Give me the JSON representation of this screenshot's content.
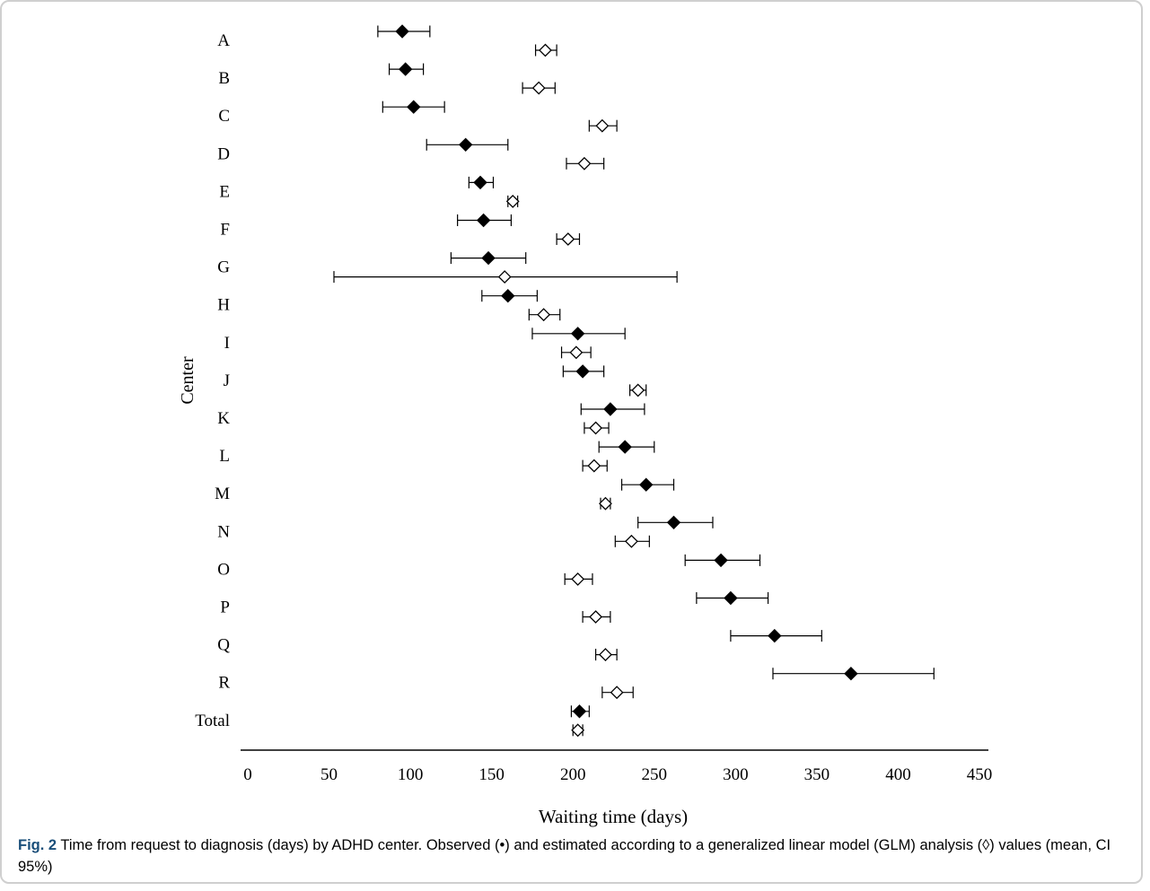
{
  "chart_data": {
    "type": "scatter",
    "subtype": "forest-plot-with-error-bars",
    "xlabel": "Waiting time (days)",
    "ylabel": "Center",
    "xlim": [
      0,
      450
    ],
    "xticks": [
      "0",
      "50",
      "100",
      "150",
      "200",
      "250",
      "300",
      "350",
      "400",
      "450"
    ],
    "grid": false,
    "categories": [
      "A",
      "B",
      "C",
      "D",
      "E",
      "F",
      "G",
      "H",
      "I",
      "J",
      "K",
      "L",
      "M",
      "N",
      "O",
      "P",
      "Q",
      "R",
      "Total"
    ],
    "series": [
      {
        "marker": "filled-diamond",
        "color": "#000000",
        "points": [
          {
            "center": "A",
            "mean": 95,
            "lo": 80,
            "hi": 112
          },
          {
            "center": "B",
            "mean": 97,
            "lo": 87,
            "hi": 108
          },
          {
            "center": "C",
            "mean": 102,
            "lo": 83,
            "hi": 121
          },
          {
            "center": "D",
            "mean": 134,
            "lo": 110,
            "hi": 160
          },
          {
            "center": "E",
            "mean": 143,
            "lo": 136,
            "hi": 151
          },
          {
            "center": "F",
            "mean": 145,
            "lo": 129,
            "hi": 162
          },
          {
            "center": "G",
            "mean": 148,
            "lo": 125,
            "hi": 171
          },
          {
            "center": "H",
            "mean": 160,
            "lo": 144,
            "hi": 178
          },
          {
            "center": "I",
            "mean": 203,
            "lo": 175,
            "hi": 232
          },
          {
            "center": "J",
            "mean": 206,
            "lo": 194,
            "hi": 219
          },
          {
            "center": "K",
            "mean": 223,
            "lo": 205,
            "hi": 244
          },
          {
            "center": "L",
            "mean": 232,
            "lo": 216,
            "hi": 250
          },
          {
            "center": "M",
            "mean": 245,
            "lo": 230,
            "hi": 262
          },
          {
            "center": "N",
            "mean": 262,
            "lo": 240,
            "hi": 286
          },
          {
            "center": "O",
            "mean": 291,
            "lo": 269,
            "hi": 315
          },
          {
            "center": "P",
            "mean": 297,
            "lo": 276,
            "hi": 320
          },
          {
            "center": "Q",
            "mean": 324,
            "lo": 297,
            "hi": 353
          },
          {
            "center": "R",
            "mean": 371,
            "lo": 323,
            "hi": 422
          },
          {
            "center": "Total",
            "mean": 204,
            "lo": 199,
            "hi": 210
          }
        ]
      },
      {
        "marker": "open-diamond",
        "color": "#000000",
        "points": [
          {
            "center": "A",
            "mean": 183,
            "lo": 177,
            "hi": 190
          },
          {
            "center": "B",
            "mean": 179,
            "lo": 169,
            "hi": 189
          },
          {
            "center": "C",
            "mean": 218,
            "lo": 210,
            "hi": 227
          },
          {
            "center": "D",
            "mean": 207,
            "lo": 196,
            "hi": 219
          },
          {
            "center": "E",
            "mean": 163,
            "lo": 160,
            "hi": 166
          },
          {
            "center": "F",
            "mean": 197,
            "lo": 190,
            "hi": 204
          },
          {
            "center": "G",
            "mean": 158,
            "lo": 53,
            "hi": 264
          },
          {
            "center": "H",
            "mean": 182,
            "lo": 173,
            "hi": 192
          },
          {
            "center": "I",
            "mean": 202,
            "lo": 193,
            "hi": 211
          },
          {
            "center": "J",
            "mean": 240,
            "lo": 235,
            "hi": 245
          },
          {
            "center": "K",
            "mean": 214,
            "lo": 207,
            "hi": 222
          },
          {
            "center": "L",
            "mean": 213,
            "lo": 206,
            "hi": 221
          },
          {
            "center": "M",
            "mean": 220,
            "lo": 217,
            "hi": 223
          },
          {
            "center": "N",
            "mean": 236,
            "lo": 226,
            "hi": 247
          },
          {
            "center": "O",
            "mean": 203,
            "lo": 195,
            "hi": 212
          },
          {
            "center": "P",
            "mean": 214,
            "lo": 206,
            "hi": 223
          },
          {
            "center": "Q",
            "mean": 220,
            "lo": 214,
            "hi": 227
          },
          {
            "center": "R",
            "mean": 227,
            "lo": 218,
            "hi": 237
          },
          {
            "center": "Total",
            "mean": 203,
            "lo": 200,
            "hi": 206
          }
        ]
      }
    ]
  },
  "caption": {
    "label": "Fig. 2",
    "text": " Time from request to diagnosis (days) by ADHD center. Observed (•) and estimated according to a generalized linear model (GLM) analysis (◊) values (mean, CI 95%)"
  }
}
